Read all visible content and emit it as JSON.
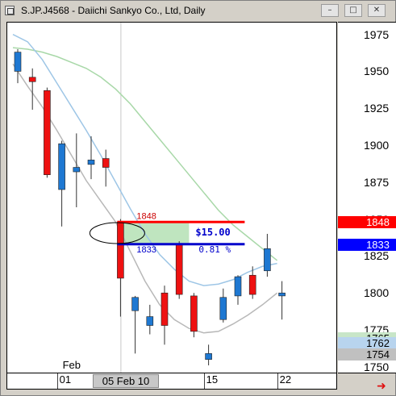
{
  "window": {
    "title": "S.JP.J4568 - Daiichi Sankyo Co., Ltd, Daily",
    "buttons": [
      "minimize",
      "maximize",
      "close"
    ]
  },
  "chart_data": {
    "type": "candlestick",
    "title": "S.JP.J4568 - Daiichi Sankyo Co., Ltd, Daily",
    "y_ticks": [
      "1975",
      "1950",
      "1925",
      "1900",
      "1875",
      "1850",
      "1825",
      "1800",
      "1775",
      "1750"
    ],
    "ylim": [
      1745,
      1983
    ],
    "x_labels": [
      {
        "text": "01",
        "sub": "Feb",
        "idx": 3
      },
      {
        "text": "15",
        "idx": 13
      },
      {
        "text": "22",
        "idx": 18
      }
    ],
    "cursor_date": "05 Feb 10",
    "candles": [
      {
        "o": 1950,
        "h": 1965,
        "l": 1942,
        "c": 1963
      },
      {
        "o": 1946,
        "h": 1952,
        "l": 1924,
        "c": 1943
      },
      {
        "o": 1937,
        "h": 1939,
        "l": 1878,
        "c": 1880
      },
      {
        "o": 1870,
        "h": 1903,
        "l": 1845,
        "c": 1901
      },
      {
        "o": 1882,
        "h": 1908,
        "l": 1858,
        "c": 1885
      },
      {
        "o": 1887,
        "h": 1906,
        "l": 1877,
        "c": 1890
      },
      {
        "o": 1891,
        "h": 1897,
        "l": 1872,
        "c": 1885
      },
      {
        "o": 1848,
        "h": 1850,
        "l": 1784,
        "c": 1810
      },
      {
        "o": 1788,
        "h": 1798,
        "l": 1759,
        "c": 1797
      },
      {
        "o": 1778,
        "h": 1792,
        "l": 1772,
        "c": 1784
      },
      {
        "o": 1800,
        "h": 1805,
        "l": 1765,
        "c": 1778
      },
      {
        "o": 1833,
        "h": 1835,
        "l": 1796,
        "c": 1799
      },
      {
        "o": 1798,
        "h": 1800,
        "l": 1770,
        "c": 1774
      },
      {
        "o": 1755,
        "h": 1765,
        "l": 1751,
        "c": 1759
      },
      {
        "o": 1782,
        "h": 1803,
        "l": 1780,
        "c": 1797
      },
      {
        "o": 1798,
        "h": 1812,
        "l": 1792,
        "c": 1811
      },
      {
        "o": 1812,
        "h": 1818,
        "l": 1796,
        "c": 1799
      },
      {
        "o": 1815,
        "h": 1840,
        "l": 1811,
        "c": 1830
      },
      {
        "o": 1798,
        "h": 1808,
        "l": 1782,
        "c": 1800
      }
    ],
    "overlays": [
      {
        "name": "ma-green",
        "color": "#a8d8a8",
        "values": [
          1966,
          1965,
          1963,
          1960,
          1956,
          1952,
          1946,
          1938,
          1928,
          1916,
          1904,
          1892,
          1880,
          1868,
          1856,
          1846,
          1838,
          1830,
          1822
        ]
      },
      {
        "name": "ma-blue",
        "color": "#9ec6e6",
        "values": [
          1975,
          1970,
          1958,
          1942,
          1926,
          1910,
          1893,
          1875,
          1857,
          1840,
          1826,
          1816,
          1808,
          1805,
          1806,
          1809,
          1814,
          1818,
          1820
        ]
      },
      {
        "name": "ma-gray",
        "color": "#b8b8b8",
        "values": [
          1955,
          1940,
          1926,
          1910,
          1893,
          1876,
          1862,
          1848,
          1828,
          1808,
          1792,
          1782,
          1776,
          1773,
          1774,
          1779,
          1785,
          1792,
          1800
        ]
      }
    ],
    "measure": {
      "high": 1848,
      "low": 1833,
      "start_idx": 7,
      "end_idx": 12,
      "high_label": "1848",
      "low_label": "1833",
      "diff_label": "$15.00",
      "pct_label": "0.81 %"
    },
    "price_markers": [
      {
        "label": "1848",
        "bg": "#ff0000",
        "fg": "#ffffff",
        "value": 1848
      },
      {
        "label": "1833",
        "bg": "#0000ff",
        "fg": "#ffffff",
        "value": 1833
      },
      {
        "label": "1765",
        "bg": "#c8e6c8",
        "fg": "#000000",
        "value": 1765
      },
      {
        "label": "1762",
        "bg": "#b8d4ee",
        "fg": "#000000",
        "value": 1762
      },
      {
        "label": "1754",
        "bg": "#c0c0c0",
        "fg": "#000000",
        "value": 1754
      }
    ],
    "colors": {
      "up": "#1e78d2",
      "down": "#ee1111",
      "wick": "#333333"
    }
  }
}
